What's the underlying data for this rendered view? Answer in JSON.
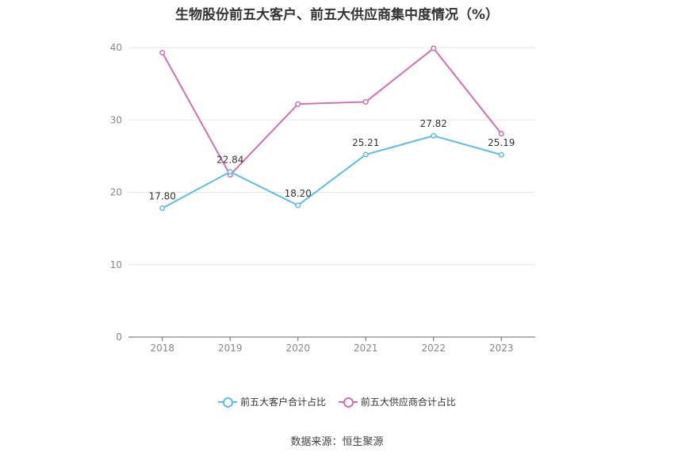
{
  "title": "生物股份前五大客户、前五大供应商集中度情况（%）",
  "source": "数据来源：恒生聚源",
  "colors": {
    "customers": "#5bbcf0",
    "suppliers": "#d46db5",
    "grid": "#e6e6e6",
    "axis": "#666666",
    "tick": "#888888"
  },
  "legend": [
    {
      "label": "前五大客户合计占比"
    },
    {
      "label": "前五大供应商合计占比"
    }
  ],
  "chart_data": {
    "type": "line",
    "title": "生物股份前五大客户、前五大供应商集中度情况（%）",
    "categories": [
      "2018",
      "2019",
      "2020",
      "2021",
      "2022",
      "2023"
    ],
    "yticks": [
      0,
      10,
      20,
      30,
      40
    ],
    "ylim": [
      0,
      40
    ],
    "grid": true,
    "legend_position": "bottom",
    "series": [
      {
        "name": "前五大客户合计占比",
        "values": [
          17.8,
          22.84,
          18.2,
          25.21,
          27.82,
          25.19
        ],
        "labels": [
          "17.80",
          "22.84",
          "18.20",
          "25.21",
          "27.82",
          "25.19"
        ]
      },
      {
        "name": "前五大供应商合计占比",
        "values": [
          39.3,
          22.4,
          32.2,
          32.5,
          39.9,
          28.1
        ],
        "labels": []
      }
    ]
  }
}
